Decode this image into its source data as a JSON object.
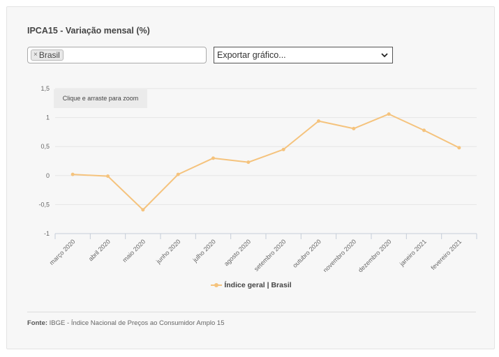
{
  "title": "IPCA15 - Variação mensal (%)",
  "filter": {
    "tag_label": "Brasil",
    "remove_symbol": "×"
  },
  "export": {
    "label": "Exportar gráfico..."
  },
  "zoom_hint": "Clique e arraste para zoom",
  "legend_label": "Índice geral | Brasil",
  "source": {
    "label": "Fonte:",
    "text": "IBGE - Índice Nacional de Preços ao Consumidor Amplo 15"
  },
  "colors": {
    "series": "#f5c37d",
    "grid": "#e6e6e6",
    "axis": "#c6cdd8"
  },
  "chart_data": {
    "type": "line",
    "categories": [
      "março 2020",
      "abril 2020",
      "maio 2020",
      "junho 2020",
      "julho 2020",
      "agosto 2020",
      "setembro 2020",
      "outubro 2020",
      "novembro 2020",
      "dezembro 2020",
      "janeiro 2021",
      "fevereiro 2021"
    ],
    "series": [
      {
        "name": "Índice geral | Brasil",
        "values": [
          0.02,
          -0.01,
          -0.59,
          0.02,
          0.3,
          0.23,
          0.45,
          0.94,
          0.81,
          1.06,
          0.78,
          0.48
        ]
      }
    ],
    "yticks": [
      "1,5",
      "1",
      "0,5",
      "0",
      "-0,5",
      "-1"
    ],
    "ytick_values": [
      1.5,
      1,
      0.5,
      0,
      -0.5,
      -1
    ],
    "ylim": [
      -1,
      1.5
    ],
    "grid": true,
    "legend_position": "bottom"
  }
}
